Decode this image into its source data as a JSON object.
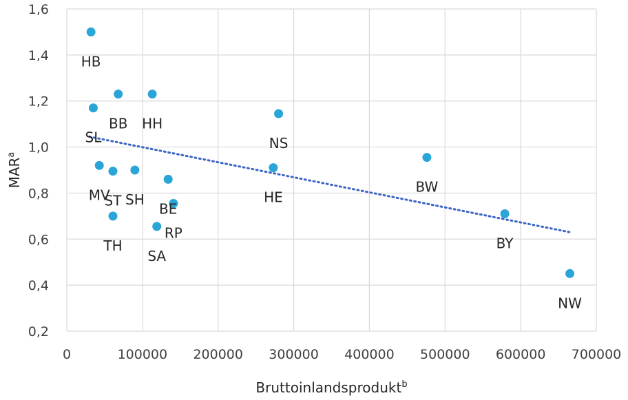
{
  "chart_data": {
    "type": "scatter",
    "title": "",
    "xlabel": "Bruttoinlandsprodukt",
    "xlabel_sup": "b",
    "ylabel": "MAR",
    "ylabel_sup": "a",
    "xlim": [
      0,
      700000
    ],
    "ylim": [
      0.2,
      1.6
    ],
    "x_ticks": [
      0,
      100000,
      200000,
      300000,
      400000,
      500000,
      600000,
      700000
    ],
    "x_tick_labels": [
      "0",
      "100000",
      "200000",
      "300000",
      "400000",
      "500000",
      "600000",
      "700000"
    ],
    "y_ticks": [
      0.2,
      0.4,
      0.6,
      0.8,
      1.0,
      1.2,
      1.4,
      1.6
    ],
    "y_tick_labels": [
      "0,2",
      "0,4",
      "0,6",
      "0,8",
      "1,0",
      "1,2",
      "1,4",
      "1,6"
    ],
    "grid": true,
    "marker_color": "#2aa5d8",
    "trendline": {
      "type": "linear",
      "style": "dotted",
      "color": "#3a64c4",
      "from": [
        30000,
        1.045
      ],
      "to": [
        665000,
        0.63
      ]
    },
    "points": [
      {
        "label": "HB",
        "x": 32000,
        "y": 1.5
      },
      {
        "label": "SL",
        "x": 35000,
        "y": 1.17
      },
      {
        "label": "BB",
        "x": 68000,
        "y": 1.23
      },
      {
        "label": "HH",
        "x": 113000,
        "y": 1.23
      },
      {
        "label": "MV",
        "x": 43000,
        "y": 0.92
      },
      {
        "label": "ST",
        "x": 61000,
        "y": 0.895
      },
      {
        "label": "SH",
        "x": 90000,
        "y": 0.9
      },
      {
        "label": "TH",
        "x": 61000,
        "y": 0.7
      },
      {
        "label": "SA",
        "x": 119000,
        "y": 0.655
      },
      {
        "label": "BE",
        "x": 134000,
        "y": 0.86
      },
      {
        "label": "RP",
        "x": 141000,
        "y": 0.755
      },
      {
        "label": "NS",
        "x": 280000,
        "y": 1.145
      },
      {
        "label": "HE",
        "x": 273000,
        "y": 0.91
      },
      {
        "label": "BW",
        "x": 476000,
        "y": 0.955
      },
      {
        "label": "BY",
        "x": 579000,
        "y": 0.71
      },
      {
        "label": "NW",
        "x": 665000,
        "y": 0.45
      }
    ]
  }
}
